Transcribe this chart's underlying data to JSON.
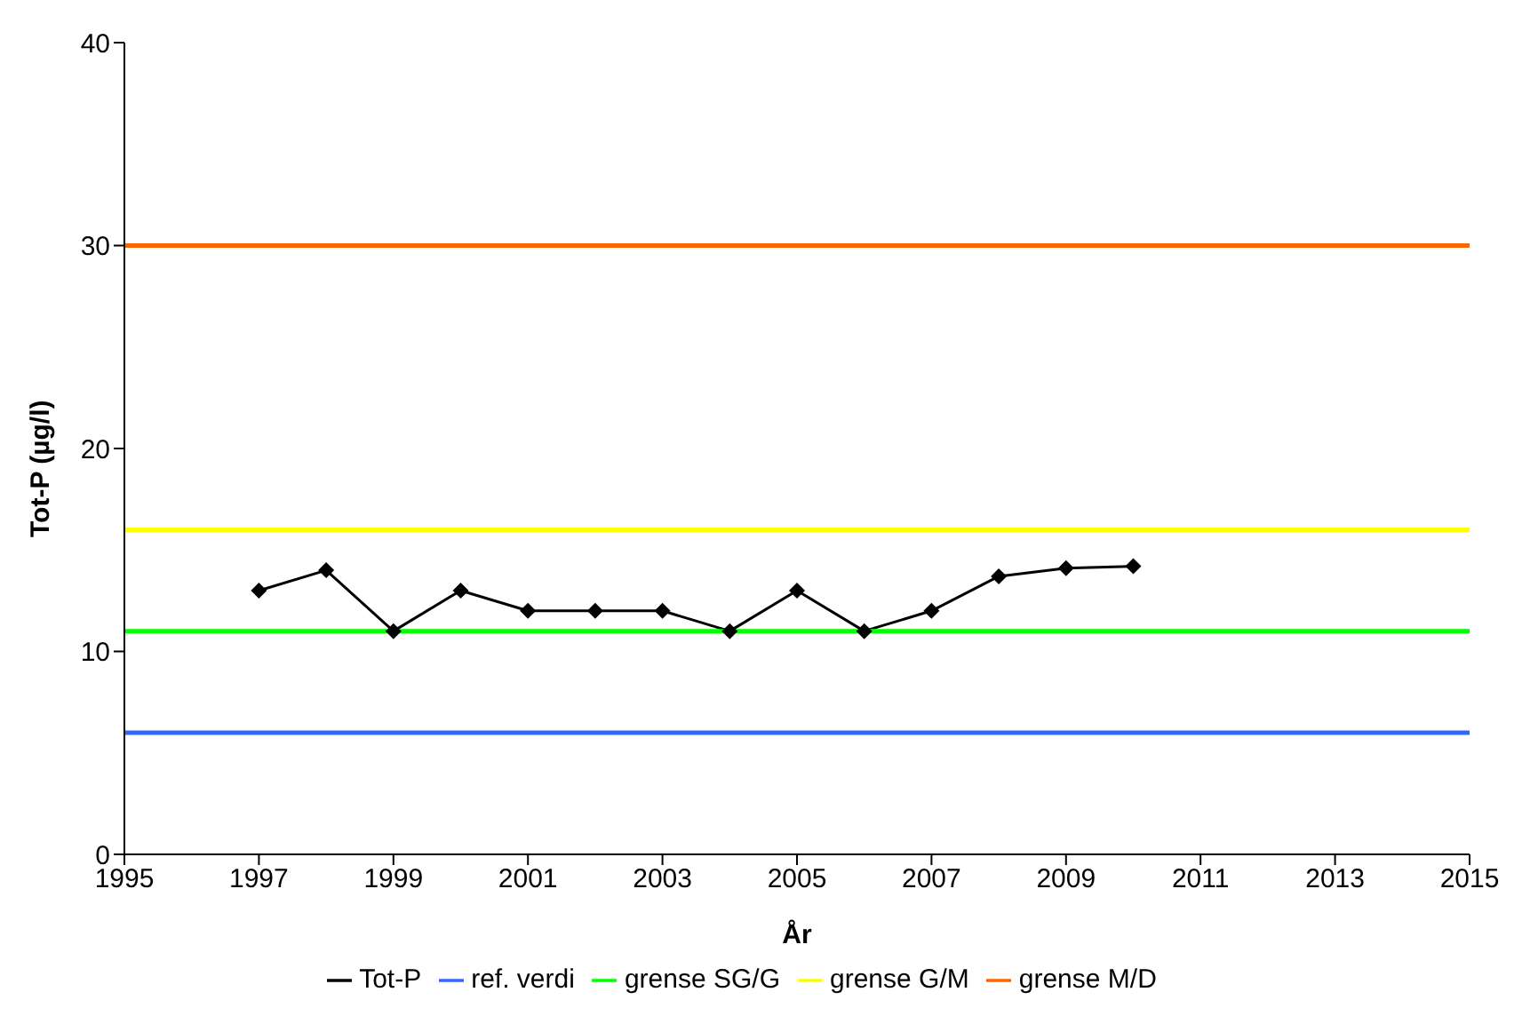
{
  "chart_data": {
    "type": "line",
    "xlabel": "År",
    "ylabel": "Tot-P (µg/l)",
    "xlim": [
      1995,
      2015
    ],
    "xticks": [
      1995,
      1997,
      1999,
      2001,
      2003,
      2005,
      2007,
      2009,
      2011,
      2013,
      2015
    ],
    "ylim": [
      0,
      40
    ],
    "yticks": [
      0,
      10,
      20,
      30,
      40
    ],
    "grid": false,
    "legend": "bottom",
    "series": [
      {
        "name": "Tot-P",
        "color": "#000000",
        "marker": "diamond",
        "x": [
          1997,
          1998,
          1999,
          2000,
          2001,
          2002,
          2003,
          2004,
          2005,
          2006,
          2007,
          2008,
          2009,
          2010
        ],
        "values": [
          13,
          14,
          11,
          13,
          12,
          12,
          12,
          11,
          13,
          11,
          12,
          13.7,
          14.1,
          14.2
        ]
      },
      {
        "name": "ref. verdi",
        "color": "#3366ff",
        "marker": "none",
        "x": [
          1995,
          2015
        ],
        "values": [
          6,
          6
        ]
      },
      {
        "name": "grense SG/G",
        "color": "#00ff00",
        "marker": "none",
        "x": [
          1995,
          2015
        ],
        "values": [
          11,
          11
        ]
      },
      {
        "name": "grense G/M",
        "color": "#ffff00",
        "marker": "none",
        "x": [
          1995,
          2015
        ],
        "values": [
          16,
          16
        ]
      },
      {
        "name": "grense M/D",
        "color": "#ff6600",
        "marker": "none",
        "x": [
          1995,
          2015
        ],
        "values": [
          30,
          30
        ]
      }
    ]
  }
}
